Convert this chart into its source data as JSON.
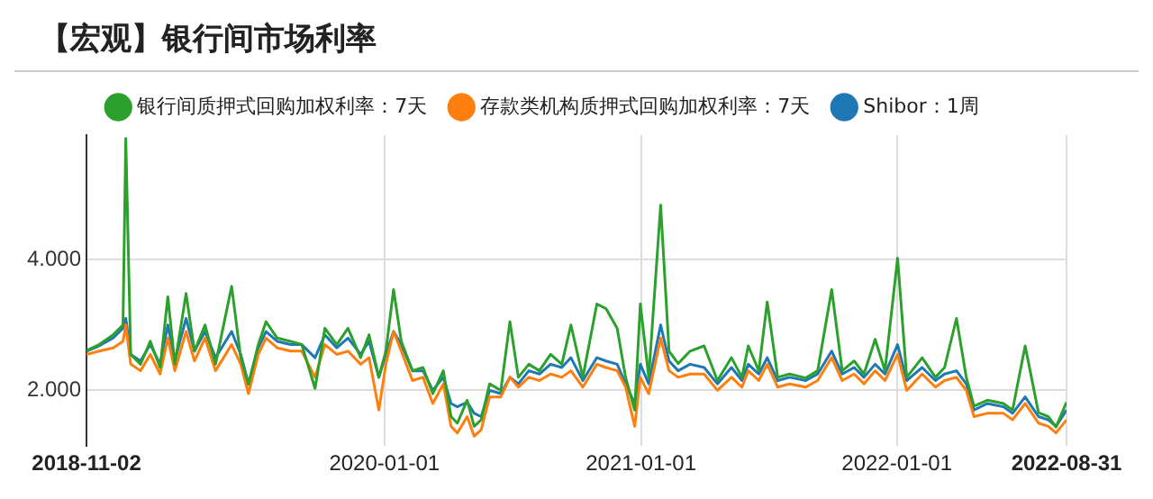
{
  "chart_data": {
    "type": "line",
    "title": "【宏观】银行间市场利率",
    "x": [
      "2018-11-02",
      "2018-11-20",
      "2018-12-10",
      "2018-12-24",
      "2018-12-28",
      "2019-01-04",
      "2019-01-18",
      "2019-02-01",
      "2019-02-15",
      "2019-02-26",
      "2019-03-08",
      "2019-03-24",
      "2019-04-05",
      "2019-04-20",
      "2019-05-05",
      "2019-05-28",
      "2019-06-10",
      "2019-06-21",
      "2019-07-05",
      "2019-07-16",
      "2019-08-01",
      "2019-08-20",
      "2019-09-05",
      "2019-09-24",
      "2019-10-08",
      "2019-10-25",
      "2019-11-10",
      "2019-11-28",
      "2019-12-10",
      "2019-12-24",
      "2020-01-03",
      "2020-01-14",
      "2020-01-25",
      "2020-02-10",
      "2020-02-25",
      "2020-03-10",
      "2020-03-25",
      "2020-04-05",
      "2020-04-14",
      "2020-04-28",
      "2020-05-08",
      "2020-05-18",
      "2020-05-30",
      "2020-06-15",
      "2020-06-28",
      "2020-07-10",
      "2020-07-25",
      "2020-08-09",
      "2020-08-25",
      "2020-09-10",
      "2020-09-23",
      "2020-10-10",
      "2020-10-30",
      "2020-11-12",
      "2020-11-28",
      "2020-12-10",
      "2020-12-23",
      "2020-12-31",
      "2021-01-12",
      "2021-01-29",
      "2021-02-10",
      "2021-02-23",
      "2021-03-12",
      "2021-04-01",
      "2021-04-20",
      "2021-05-10",
      "2021-05-25",
      "2021-06-03",
      "2021-06-18",
      "2021-06-30",
      "2021-07-15",
      "2021-08-01",
      "2021-08-24",
      "2021-09-10",
      "2021-09-30",
      "2021-10-15",
      "2021-11-01",
      "2021-11-15",
      "2021-12-01",
      "2021-12-15",
      "2022-01-02",
      "2022-01-15",
      "2022-02-06",
      "2022-02-25",
      "2022-03-10",
      "2022-03-27",
      "2022-04-10",
      "2022-04-21",
      "2022-05-10",
      "2022-06-02",
      "2022-06-15",
      "2022-07-03",
      "2022-07-22",
      "2022-08-05",
      "2022-08-16",
      "2022-08-31"
    ],
    "series": [
      {
        "name": "Shibor：1周",
        "color": "#1f77b4",
        "values": [
          2.6,
          2.68,
          2.8,
          2.95,
          3.1,
          2.55,
          2.45,
          2.7,
          2.4,
          3.0,
          2.45,
          3.1,
          2.6,
          2.9,
          2.5,
          2.9,
          2.55,
          2.1,
          2.65,
          2.9,
          2.75,
          2.7,
          2.7,
          2.5,
          2.85,
          2.65,
          2.8,
          2.55,
          2.75,
          2.2,
          2.55,
          2.9,
          2.7,
          2.3,
          2.3,
          2.0,
          2.2,
          1.8,
          1.75,
          1.82,
          1.65,
          1.6,
          2.0,
          1.95,
          2.2,
          2.1,
          2.3,
          2.25,
          2.4,
          2.35,
          2.5,
          2.15,
          2.5,
          2.45,
          2.4,
          2.1,
          1.8,
          2.4,
          2.1,
          3.0,
          2.45,
          2.3,
          2.4,
          2.35,
          2.1,
          2.35,
          2.15,
          2.4,
          2.25,
          2.5,
          2.15,
          2.2,
          2.15,
          2.25,
          2.6,
          2.25,
          2.35,
          2.2,
          2.4,
          2.25,
          2.7,
          2.15,
          2.35,
          2.15,
          2.25,
          2.3,
          2.1,
          1.7,
          1.8,
          1.75,
          1.65,
          1.9,
          1.6,
          1.55,
          1.45,
          1.7
        ]
      },
      {
        "name": "存款类机构质押式回购加权利率：7天",
        "color": "#ff7f0e",
        "values": [
          2.55,
          2.6,
          2.65,
          2.75,
          3.0,
          2.4,
          2.3,
          2.55,
          2.25,
          2.8,
          2.3,
          2.9,
          2.45,
          2.8,
          2.3,
          2.7,
          2.4,
          1.95,
          2.55,
          2.8,
          2.65,
          2.6,
          2.6,
          2.2,
          2.7,
          2.55,
          2.6,
          2.4,
          2.5,
          1.7,
          2.4,
          2.9,
          2.6,
          2.15,
          2.2,
          1.8,
          2.1,
          1.45,
          1.35,
          1.6,
          1.3,
          1.4,
          1.9,
          1.9,
          2.2,
          2.05,
          2.2,
          2.15,
          2.25,
          2.2,
          2.3,
          2.05,
          2.4,
          2.35,
          2.3,
          2.05,
          1.45,
          2.2,
          1.95,
          2.8,
          2.3,
          2.2,
          2.25,
          2.25,
          2.0,
          2.2,
          2.05,
          2.3,
          2.15,
          2.4,
          2.05,
          2.1,
          2.05,
          2.15,
          2.5,
          2.15,
          2.25,
          2.1,
          2.3,
          2.15,
          2.55,
          2.0,
          2.25,
          2.05,
          2.15,
          2.2,
          2.0,
          1.6,
          1.65,
          1.65,
          1.55,
          1.8,
          1.5,
          1.45,
          1.35,
          1.55
        ]
      },
      {
        "name": "银行间质押式回购加权利率：7天",
        "color": "#2ca02c",
        "values": [
          2.61,
          2.7,
          2.85,
          3.0,
          5.85,
          2.55,
          2.4,
          2.75,
          2.35,
          3.43,
          2.4,
          3.48,
          2.6,
          3.0,
          2.4,
          3.59,
          2.5,
          2.09,
          2.7,
          3.05,
          2.8,
          2.75,
          2.7,
          2.03,
          2.95,
          2.7,
          2.95,
          2.5,
          2.85,
          2.2,
          2.6,
          3.54,
          2.75,
          2.3,
          2.35,
          1.95,
          2.3,
          1.6,
          1.5,
          1.85,
          1.45,
          1.55,
          2.1,
          2.0,
          3.05,
          2.2,
          2.4,
          2.3,
          2.55,
          2.4,
          3.0,
          2.2,
          3.32,
          3.25,
          2.95,
          2.2,
          1.7,
          3.32,
          2.2,
          4.83,
          2.6,
          2.41,
          2.6,
          2.68,
          2.15,
          2.5,
          2.2,
          2.68,
          2.3,
          3.35,
          2.2,
          2.25,
          2.19,
          2.3,
          3.54,
          2.3,
          2.45,
          2.25,
          2.78,
          2.3,
          4.02,
          2.2,
          2.5,
          2.2,
          2.35,
          3.1,
          2.2,
          1.76,
          1.85,
          1.8,
          1.7,
          2.68,
          1.66,
          1.6,
          1.44,
          1.82
        ]
      }
    ],
    "xlim": [
      "2018-11-02",
      "2022-08-31"
    ],
    "xticks": [
      "2018-11-02",
      "2020-01-01",
      "2021-01-01",
      "2022-01-01",
      "2022-08-31"
    ],
    "ylim": [
      1.15,
      5.9
    ],
    "yticks": [
      {
        "value": 2,
        "label": "2.000"
      },
      {
        "value": 4,
        "label": "4.000"
      }
    ],
    "grid": true,
    "legend": "top",
    "marker": "none",
    "line_style": "solid"
  }
}
